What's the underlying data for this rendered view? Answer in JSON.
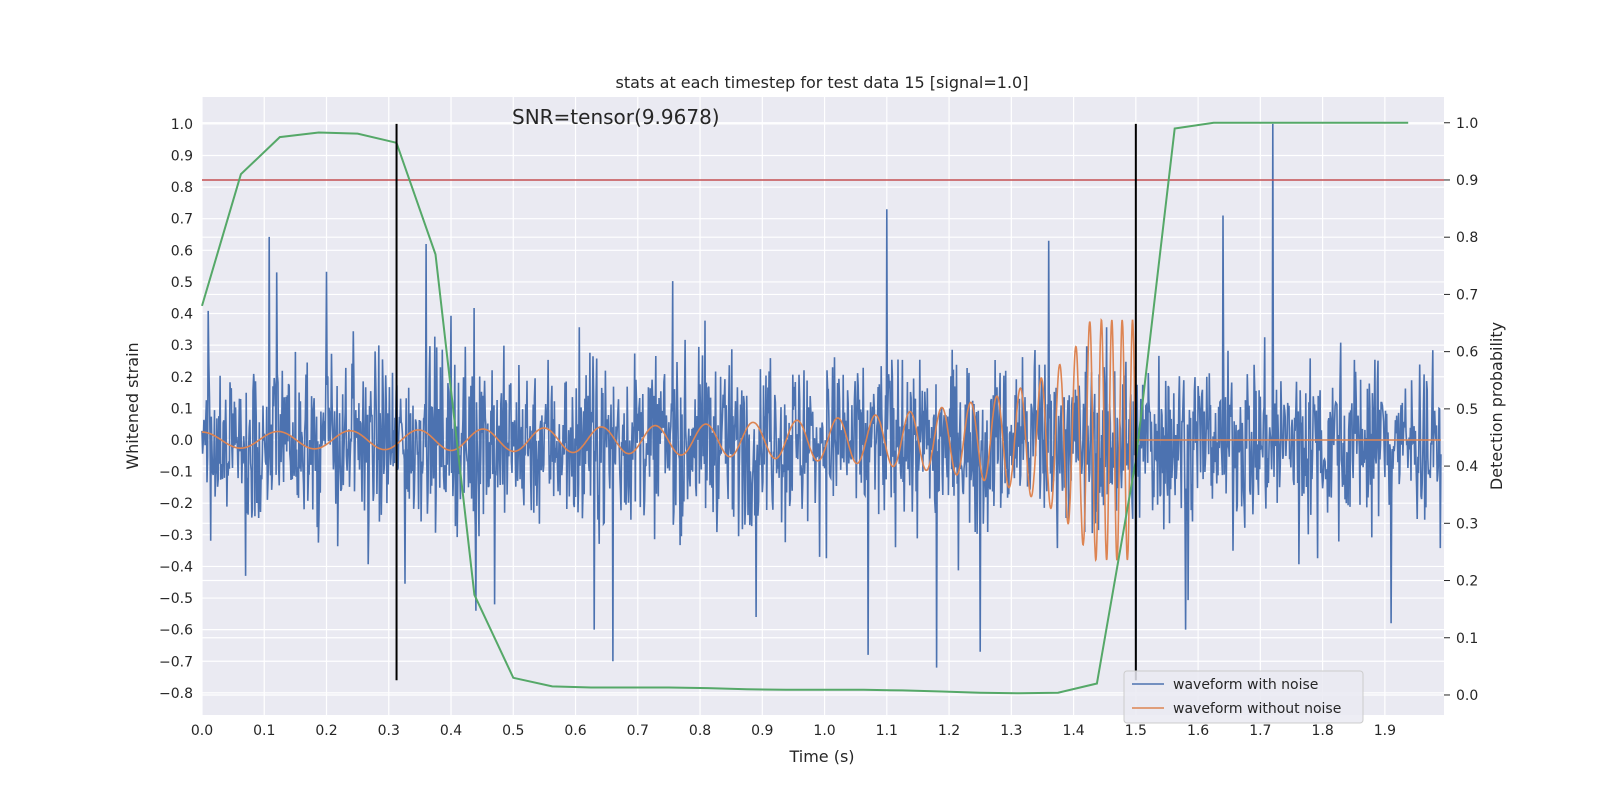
{
  "chart_data": {
    "type": "line",
    "title": "stats at each timestep for test data 15 [signal=1.0]",
    "annotation": "SNR=tensor(9.9678)",
    "xlabel": "Time (s)",
    "ylabel_left": "Whitened strain",
    "ylabel_right": "Detection probability",
    "xlim": [
      0.0,
      1.995
    ],
    "ylim_left": [
      -0.87,
      1.085
    ],
    "ylim_right": [
      -0.035,
      1.045
    ],
    "x_ticks": [
      "0.0",
      "0.1",
      "0.2",
      "0.3",
      "0.4",
      "0.5",
      "0.6",
      "0.7",
      "0.8",
      "0.9",
      "1.0",
      "1.1",
      "1.2",
      "1.3",
      "1.4",
      "1.5",
      "1.6",
      "1.7",
      "1.8",
      "1.9"
    ],
    "y_left_ticks": [
      "−0.8",
      "−0.7",
      "−0.6",
      "−0.5",
      "−0.4",
      "−0.3",
      "−0.2",
      "−0.1",
      "0.0",
      "0.1",
      "0.2",
      "0.3",
      "0.4",
      "0.5",
      "0.6",
      "0.7",
      "0.8",
      "0.9",
      "1.0"
    ],
    "y_right_ticks": [
      "0.0",
      "0.1",
      "0.2",
      "0.3",
      "0.4",
      "0.5",
      "0.6",
      "0.7",
      "0.8",
      "0.9",
      "1.0"
    ],
    "grid": true,
    "legend_position": "lower-right",
    "series": [
      {
        "name": "waveform with noise",
        "axis": "left",
        "color": "#4c72b0",
        "description_values": "noisy whitened strain, roughly ±0.3 amplitude with spikes",
        "spikes": [
          [
            0.07,
            -0.43
          ],
          [
            0.12,
            0.53
          ],
          [
            0.36,
            0.62
          ],
          [
            0.44,
            -0.54
          ],
          [
            0.47,
            -0.52
          ],
          [
            0.63,
            -0.6
          ],
          [
            0.66,
            -0.7
          ],
          [
            0.89,
            -0.56
          ],
          [
            1.07,
            -0.68
          ],
          [
            1.1,
            0.73
          ],
          [
            1.18,
            -0.72
          ],
          [
            1.25,
            -0.67
          ],
          [
            1.36,
            0.63
          ],
          [
            1.5,
            -0.76
          ],
          [
            1.58,
            -0.6
          ],
          [
            1.64,
            0.71
          ],
          [
            1.72,
            1.0
          ],
          [
            1.91,
            -0.58
          ]
        ]
      },
      {
        "name": "waveform without noise",
        "axis": "left",
        "color": "#dd8452",
        "chirp_end": 1.5,
        "start_amplitude": 0.025,
        "peak_amplitude": 0.38
      },
      {
        "name": "",
        "axis": "right",
        "color": "#55a868",
        "x": [
          0.0,
          0.0625,
          0.125,
          0.1875,
          0.25,
          0.3125,
          0.375,
          0.4375,
          0.5,
          0.5625,
          0.625,
          0.6875,
          0.75,
          0.8125,
          0.875,
          0.9375,
          1.0,
          1.0625,
          1.125,
          1.1875,
          1.25,
          1.3125,
          1.375,
          1.4375,
          1.5,
          1.5625,
          1.625,
          1.6875,
          1.75,
          1.8125,
          1.875,
          1.9375
        ],
        "values": [
          0.68,
          0.91,
          0.975,
          0.983,
          0.981,
          0.965,
          0.77,
          0.175,
          0.03,
          0.015,
          0.013,
          0.013,
          0.013,
          0.012,
          0.01,
          0.009,
          0.009,
          0.009,
          0.008,
          0.006,
          0.004,
          0.003,
          0.004,
          0.02,
          0.41,
          0.99,
          1.0,
          1.0,
          1.0,
          1.0,
          1.0,
          1.0
        ]
      }
    ],
    "threshold_line": {
      "axis": "right",
      "value": 0.9,
      "color": "#c44e52"
    },
    "vertical_lines": [
      {
        "x": 0.3125,
        "ymin": -0.76,
        "ymax": 1.0,
        "color": "#000000"
      },
      {
        "x": 1.5,
        "ymin": -0.76,
        "ymax": 1.0,
        "color": "#000000"
      }
    ]
  }
}
